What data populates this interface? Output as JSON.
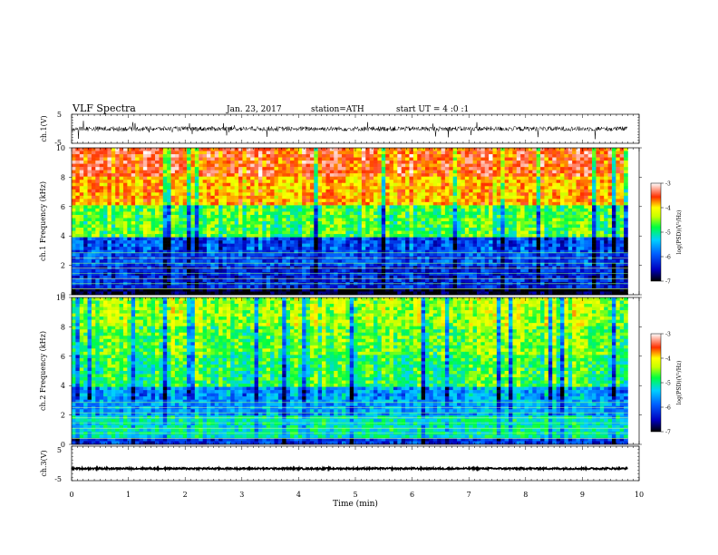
{
  "header": {
    "title": "VLF Spectra",
    "date": "Jan. 23, 2017",
    "station": "station=ATH",
    "start": "start UT = 4 :0 :1"
  },
  "colors": {
    "spectrogram_ramp": [
      "#000080",
      "#0000ff",
      "#00c8ff",
      "#00ff80",
      "#ffff00",
      "#ff8000",
      "#ff2000",
      "#ffffff"
    ]
  },
  "chart_data": [
    {
      "type": "line",
      "name": "ch1-waveform",
      "ylabel": "ch.1(V)",
      "ylim": [
        -5,
        5
      ],
      "yticks": [
        "5",
        "-5"
      ],
      "xlim": [
        0,
        10
      ],
      "baseline_v": 0,
      "trace_description_level": "noisy waveform around 0 V with spikes up to about ±4 V"
    },
    {
      "type": "heatmap",
      "name": "ch1-spectrogram",
      "ylabel": "ch.1 Frequency (kHz)",
      "ylim": [
        0,
        10
      ],
      "yticks": [
        "0",
        "2",
        "4",
        "6",
        "8",
        "10"
      ],
      "xlim": [
        0,
        9.8
      ],
      "colorbar": {
        "label": "log(PSD)(V²/Hz)",
        "range": [
          -7,
          -3
        ],
        "ticks": [
          "-3",
          "-4",
          "-5",
          "-6",
          "-7"
        ]
      },
      "band_levels": [
        {
          "f": [
            8,
            10
          ],
          "logpsd": -3.6
        },
        {
          "f": [
            6,
            8
          ],
          "logpsd": -4.0
        },
        {
          "f": [
            4,
            6
          ],
          "logpsd": -4.9
        },
        {
          "f": [
            2,
            4
          ],
          "logpsd": -6.1
        },
        {
          "f": [
            0.5,
            2
          ],
          "logpsd": -6.3
        },
        {
          "f": [
            0,
            0.5
          ],
          "logpsd": -6.9
        }
      ]
    },
    {
      "type": "heatmap",
      "name": "ch2-spectrogram",
      "ylabel": "ch.2 Frequency (kHz)",
      "ylim": [
        0,
        10
      ],
      "yticks": [
        "0",
        "2",
        "4",
        "6",
        "8",
        "10"
      ],
      "xlim": [
        0,
        9.8
      ],
      "colorbar": {
        "label": "log(PSD)(V²/Hz)",
        "range": [
          -7,
          -3
        ],
        "ticks": [
          "-3",
          "-4",
          "-5",
          "-6",
          "-7"
        ]
      },
      "band_levels": [
        {
          "f": [
            8,
            10
          ],
          "logpsd": -4.6
        },
        {
          "f": [
            6,
            8
          ],
          "logpsd": -4.8
        },
        {
          "f": [
            4,
            6
          ],
          "logpsd": -5.0
        },
        {
          "f": [
            2,
            4
          ],
          "logpsd": -5.7
        },
        {
          "f": [
            0.5,
            2
          ],
          "logpsd": -5.3
        },
        {
          "f": [
            0,
            0.5
          ],
          "logpsd": -6.2
        }
      ]
    },
    {
      "type": "line",
      "name": "ch3-waveform",
      "ylabel": "ch.3(V)",
      "ylim": [
        -5,
        5
      ],
      "yticks": [
        "5",
        "-5"
      ],
      "xlim": [
        0,
        10
      ],
      "baseline_v": -1.5
    }
  ],
  "xaxis": {
    "label": "Time (min)",
    "ticks": [
      "0",
      "1",
      "2",
      "3",
      "4",
      "5",
      "6",
      "7",
      "8",
      "9",
      "10"
    ]
  }
}
